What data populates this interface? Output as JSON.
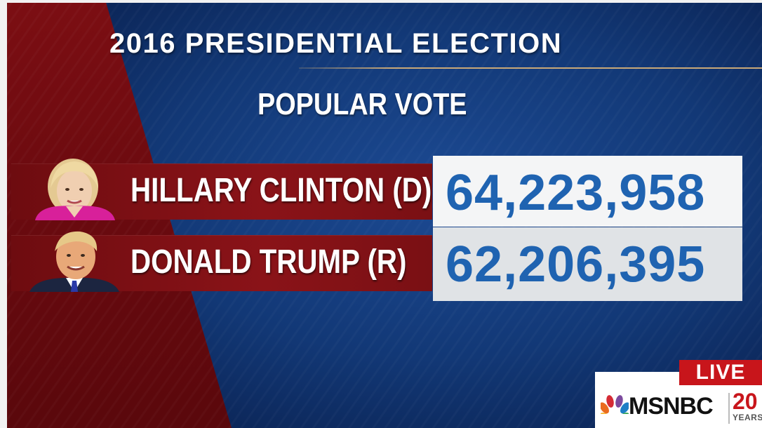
{
  "broadcast": {
    "title": "2016 PRESIDENTIAL ELECTION",
    "subtitle": "POPULAR VOTE"
  },
  "candidates": [
    {
      "name": "HILLARY CLINTON (D)",
      "votes": "64,223,958",
      "photo_icon": "candidate-portrait-clinton"
    },
    {
      "name": "DONALD TRUMP (R)",
      "votes": "62,206,395",
      "photo_icon": "candidate-portrait-trump"
    }
  ],
  "badge": {
    "live": "LIVE",
    "network": "MSNBC",
    "anniversary_number": "20",
    "anniversary_label": "YEARS"
  },
  "colors": {
    "background_blue": "#0f2f6a",
    "republican_red": "#8a1318",
    "vote_blue": "#1f63b1",
    "live_red": "#c8151b"
  }
}
